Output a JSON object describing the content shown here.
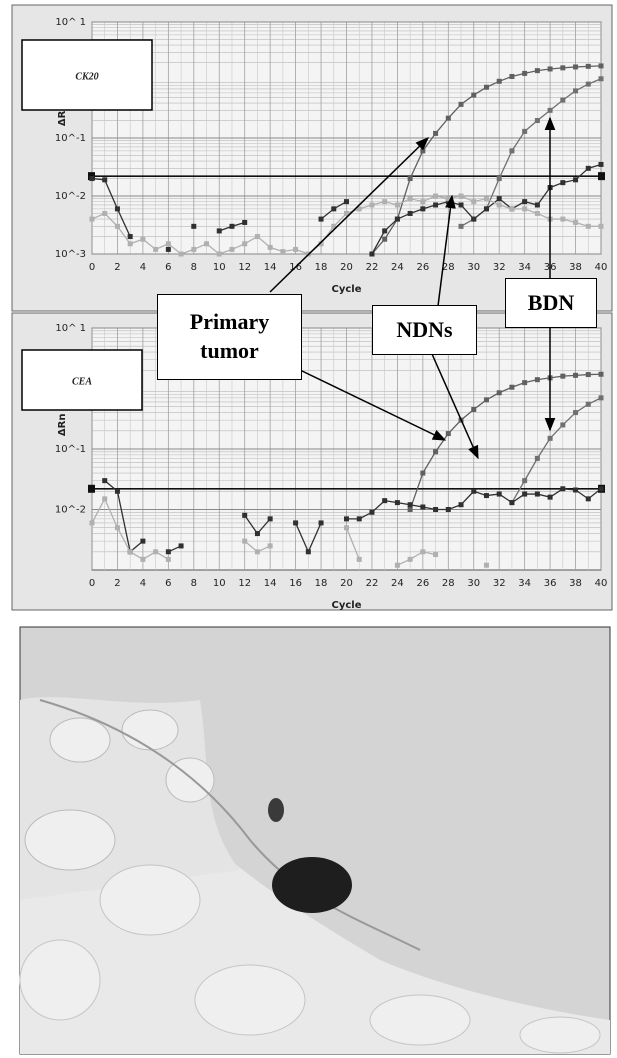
{
  "chart_data": [
    {
      "type": "line",
      "title": "CK20",
      "x_label": "Cycle",
      "y_label": "ΔRn",
      "x": [
        0,
        1,
        2,
        3,
        4,
        5,
        6,
        7,
        8,
        9,
        10,
        11,
        12,
        13,
        14,
        15,
        16,
        17,
        18,
        19,
        20,
        21,
        22,
        23,
        24,
        25,
        26,
        27,
        28,
        29,
        30,
        31,
        32,
        33,
        34,
        35,
        36,
        37,
        38,
        39,
        40
      ],
      "xlim": [
        0,
        40
      ],
      "xticks": [
        0,
        2,
        4,
        6,
        8,
        10,
        12,
        14,
        16,
        18,
        20,
        22,
        24,
        26,
        28,
        30,
        32,
        34,
        36,
        38,
        40
      ],
      "ylim": [
        0.001,
        10
      ],
      "log_scale": true,
      "grid": true,
      "threshold": 0.022,
      "yticks": [
        {
          "value": 10,
          "label": "10^ 1"
        },
        {
          "value": 0.1,
          "label": "10^-1"
        },
        {
          "value": 0.01,
          "label": "10^-2"
        },
        {
          "value": 0.001,
          "label": "10^-3"
        }
      ],
      "series": [
        {
          "color": "#606060",
          "values": [
            null,
            null,
            null,
            null,
            null,
            null,
            null,
            null,
            null,
            null,
            null,
            null,
            null,
            null,
            null,
            null,
            null,
            null,
            null,
            null,
            null,
            null,
            0.001,
            0.0018,
            0.004,
            0.02,
            0.06,
            0.12,
            0.22,
            0.38,
            0.55,
            0.75,
            0.95,
            1.15,
            1.3,
            1.45,
            1.55,
            1.62,
            1.68,
            1.72,
            1.75
          ]
        },
        {
          "color": "#707070",
          "values": [
            null,
            null,
            null,
            null,
            null,
            null,
            null,
            null,
            null,
            null,
            null,
            null,
            null,
            null,
            null,
            null,
            null,
            null,
            null,
            null,
            null,
            null,
            null,
            null,
            null,
            null,
            null,
            null,
            null,
            0.003,
            0.004,
            0.006,
            0.02,
            0.06,
            0.13,
            0.2,
            0.3,
            0.45,
            0.65,
            0.85,
            1.05
          ]
        },
        {
          "color": "#303030",
          "values": [
            0.02,
            0.019,
            0.006,
            0.002,
            null,
            null,
            0.0012,
            null,
            0.003,
            null,
            0.0025,
            0.003,
            0.0035,
            null,
            null,
            null,
            null,
            null,
            0.004,
            0.006,
            0.008,
            null,
            0.001,
            0.0025,
            0.004,
            0.005,
            0.006,
            0.007,
            0.008,
            0.007,
            0.004,
            0.006,
            0.009,
            0.006,
            0.008,
            0.007,
            0.014,
            0.017,
            0.019,
            0.03,
            0.035
          ]
        },
        {
          "color": "#b0b0b0",
          "values": [
            0.004,
            0.005,
            0.003,
            0.0015,
            0.0018,
            0.0012,
            0.0015,
            0.001,
            0.0012,
            0.0015,
            0.001,
            0.0012,
            0.0015,
            0.002,
            0.0013,
            0.0011,
            0.0012,
            0.001,
            0.0015,
            0.003,
            0.005,
            0.006,
            0.007,
            0.008,
            0.007,
            0.009,
            0.008,
            0.01,
            0.009,
            0.01,
            0.008,
            0.009,
            0.007,
            0.006,
            0.006,
            0.005,
            0.004,
            0.004,
            0.0035,
            0.003,
            0.003
          ]
        }
      ]
    },
    {
      "type": "line",
      "title": "CEA",
      "x_label": "Cycle",
      "y_label": "ΔRn",
      "x": [
        0,
        1,
        2,
        3,
        4,
        5,
        6,
        7,
        8,
        9,
        10,
        11,
        12,
        13,
        14,
        15,
        16,
        17,
        18,
        19,
        20,
        21,
        22,
        23,
        24,
        25,
        26,
        27,
        28,
        29,
        30,
        31,
        32,
        33,
        34,
        35,
        36,
        37,
        38,
        39,
        40
      ],
      "xlim": [
        0,
        40
      ],
      "xticks": [
        0,
        2,
        4,
        6,
        8,
        10,
        12,
        14,
        16,
        18,
        20,
        22,
        24,
        26,
        28,
        30,
        32,
        34,
        36,
        38,
        40
      ],
      "ylim": [
        0.001,
        10
      ],
      "log_scale": true,
      "grid": true,
      "threshold": 0.022,
      "yticks": [
        {
          "value": 10,
          "label": "10^ 1"
        },
        {
          "value": 0.1,
          "label": "10^-1"
        },
        {
          "value": 0.01,
          "label": "10^-2"
        }
      ],
      "series": [
        {
          "color": "#606060",
          "values": [
            null,
            null,
            null,
            null,
            null,
            null,
            null,
            null,
            null,
            null,
            null,
            null,
            null,
            null,
            null,
            null,
            null,
            null,
            null,
            null,
            null,
            null,
            null,
            null,
            null,
            0.01,
            0.04,
            0.09,
            0.18,
            0.3,
            0.45,
            0.65,
            0.85,
            1.05,
            1.25,
            1.4,
            1.5,
            1.6,
            1.65,
            1.7,
            1.72
          ]
        },
        {
          "color": "#707070",
          "values": [
            null,
            null,
            null,
            null,
            null,
            null,
            null,
            null,
            null,
            null,
            null,
            null,
            null,
            null,
            null,
            null,
            null,
            null,
            null,
            null,
            null,
            null,
            null,
            null,
            null,
            null,
            null,
            null,
            null,
            null,
            null,
            null,
            null,
            0.013,
            0.03,
            0.07,
            0.15,
            0.25,
            0.4,
            0.55,
            0.7
          ]
        },
        {
          "color": "#303030",
          "values": [
            null,
            0.03,
            0.02,
            0.002,
            0.003,
            null,
            0.002,
            0.0025,
            null,
            null,
            null,
            null,
            0.008,
            0.004,
            0.007,
            null,
            0.006,
            0.002,
            0.006,
            null,
            0.007,
            0.007,
            0.009,
            0.014,
            0.013,
            0.012,
            0.011,
            0.01,
            0.01,
            0.012,
            0.02,
            0.017,
            0.018,
            0.013,
            0.018,
            0.018,
            0.016,
            0.022,
            0.021,
            0.015,
            0.022
          ]
        },
        {
          "color": "#b0b0b0",
          "values": [
            0.006,
            0.015,
            0.005,
            0.002,
            0.0015,
            0.002,
            0.0015,
            null,
            null,
            null,
            null,
            null,
            0.003,
            0.002,
            0.0025,
            null,
            null,
            null,
            null,
            null,
            0.005,
            0.0015,
            null,
            null,
            0.0012,
            0.0015,
            0.002,
            0.0018,
            null,
            null,
            null,
            0.0012,
            null,
            null,
            null,
            null,
            null,
            null,
            null,
            null,
            null
          ]
        }
      ]
    }
  ],
  "annotations": [
    "Primary tumor",
    "NDNs",
    "BDN"
  ]
}
